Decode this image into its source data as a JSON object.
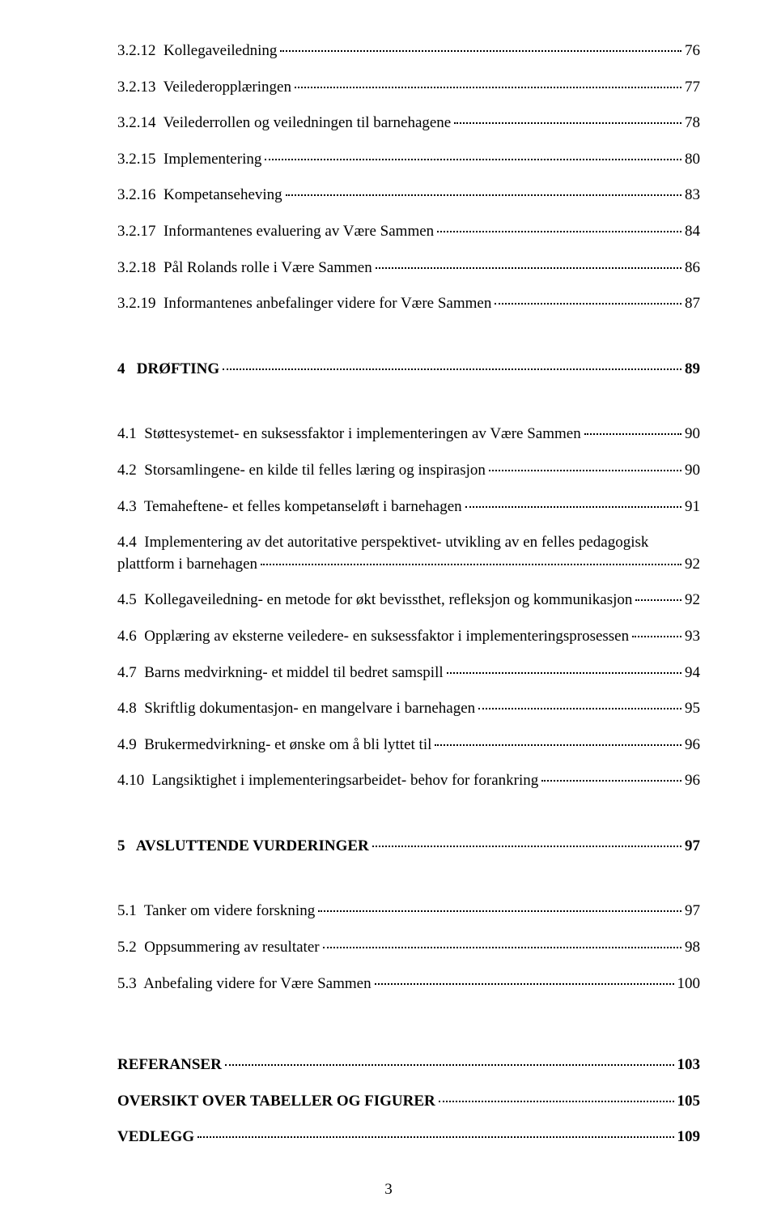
{
  "page_number": "3",
  "entries": [
    {
      "indent": 2,
      "bold": false,
      "label": "3.2.12  Kollegaveiledning",
      "page": "76"
    },
    {
      "indent": 2,
      "bold": false,
      "label": "3.2.13  Veilederopplæringen",
      "page": "77"
    },
    {
      "indent": 2,
      "bold": false,
      "label": "3.2.14  Veilederrollen og veiledningen til barnehagene",
      "page": "78"
    },
    {
      "indent": 2,
      "bold": false,
      "label": "3.2.15  Implementering",
      "page": "80"
    },
    {
      "indent": 2,
      "bold": false,
      "label": "3.2.16  Kompetanseheving",
      "page": "83"
    },
    {
      "indent": 2,
      "bold": false,
      "label": "3.2.17  Informantenes evaluering av Være Sammen",
      "page": "84"
    },
    {
      "indent": 2,
      "bold": false,
      "label": "3.2.18  Pål Rolands rolle i Være Sammen",
      "page": "86"
    },
    {
      "indent": 2,
      "bold": false,
      "label": "3.2.19  Informantenes anbefalinger videre for Være Sammen",
      "page": "87"
    },
    {
      "gap": "section"
    },
    {
      "indent": 0,
      "bold": true,
      "label": "4   DRØFTING",
      "page": "89"
    },
    {
      "gap": "section"
    },
    {
      "indent": 1,
      "bold": false,
      "label": "4.1  Støttesystemet- en suksessfaktor i implementeringen av Være Sammen",
      "page": "90"
    },
    {
      "indent": 1,
      "bold": false,
      "label": "4.2  Storsamlingene- en kilde til felles læring og inspirasjon",
      "page": "90"
    },
    {
      "indent": 1,
      "bold": false,
      "label": "4.3  Temaheftene- et felles kompetanseløft i barnehagen",
      "page": "91"
    },
    {
      "indent": 1,
      "bold": false,
      "multiline": true,
      "label_line1": "4.4  Implementering av det autoritative perspektivet- utvikling av en felles pedagogisk",
      "label_line2": "plattform i barnehagen",
      "page": "92"
    },
    {
      "indent": 1,
      "bold": false,
      "label": "4.5  Kollegaveiledning- en metode for økt bevissthet, refleksjon og kommunikasjon",
      "page": "92"
    },
    {
      "indent": 1,
      "bold": false,
      "label": "4.6  Opplæring av eksterne veiledere- en suksessfaktor i implementeringsprosessen",
      "page": "93"
    },
    {
      "indent": 1,
      "bold": false,
      "label": "4.7  Barns medvirkning- et middel til bedret samspill",
      "page": "94"
    },
    {
      "indent": 1,
      "bold": false,
      "label": "4.8  Skriftlig dokumentasjon- en mangelvare i barnehagen",
      "page": "95"
    },
    {
      "indent": 1,
      "bold": false,
      "label": "4.9  Brukermedvirkning- et ønske om å bli lyttet til",
      "page": "96"
    },
    {
      "indent": 1,
      "bold": false,
      "label": "4.10  Langsiktighet i implementeringsarbeidet- behov for forankring",
      "page": "96"
    },
    {
      "gap": "section"
    },
    {
      "indent": 0,
      "bold": true,
      "label": "5   AVSLUTTENDE VURDERINGER",
      "page": "97"
    },
    {
      "gap": "section"
    },
    {
      "indent": 1,
      "bold": false,
      "label": "5.1  Tanker om videre forskning",
      "page": "97"
    },
    {
      "indent": 1,
      "bold": false,
      "label": "5.2  Oppsummering av resultater",
      "page": "98"
    },
    {
      "indent": 1,
      "bold": false,
      "label": "5.3  Anbefaling videre for Være Sammen",
      "page": "100"
    },
    {
      "gap": "big"
    },
    {
      "indent": 0,
      "bold": true,
      "label": "REFERANSER",
      "page": "103"
    },
    {
      "indent": 0,
      "bold": true,
      "label": "OVERSIKT OVER TABELLER OG FIGURER",
      "page": "105"
    },
    {
      "indent": 0,
      "bold": true,
      "label": "VEDLEGG",
      "page": "109"
    }
  ]
}
